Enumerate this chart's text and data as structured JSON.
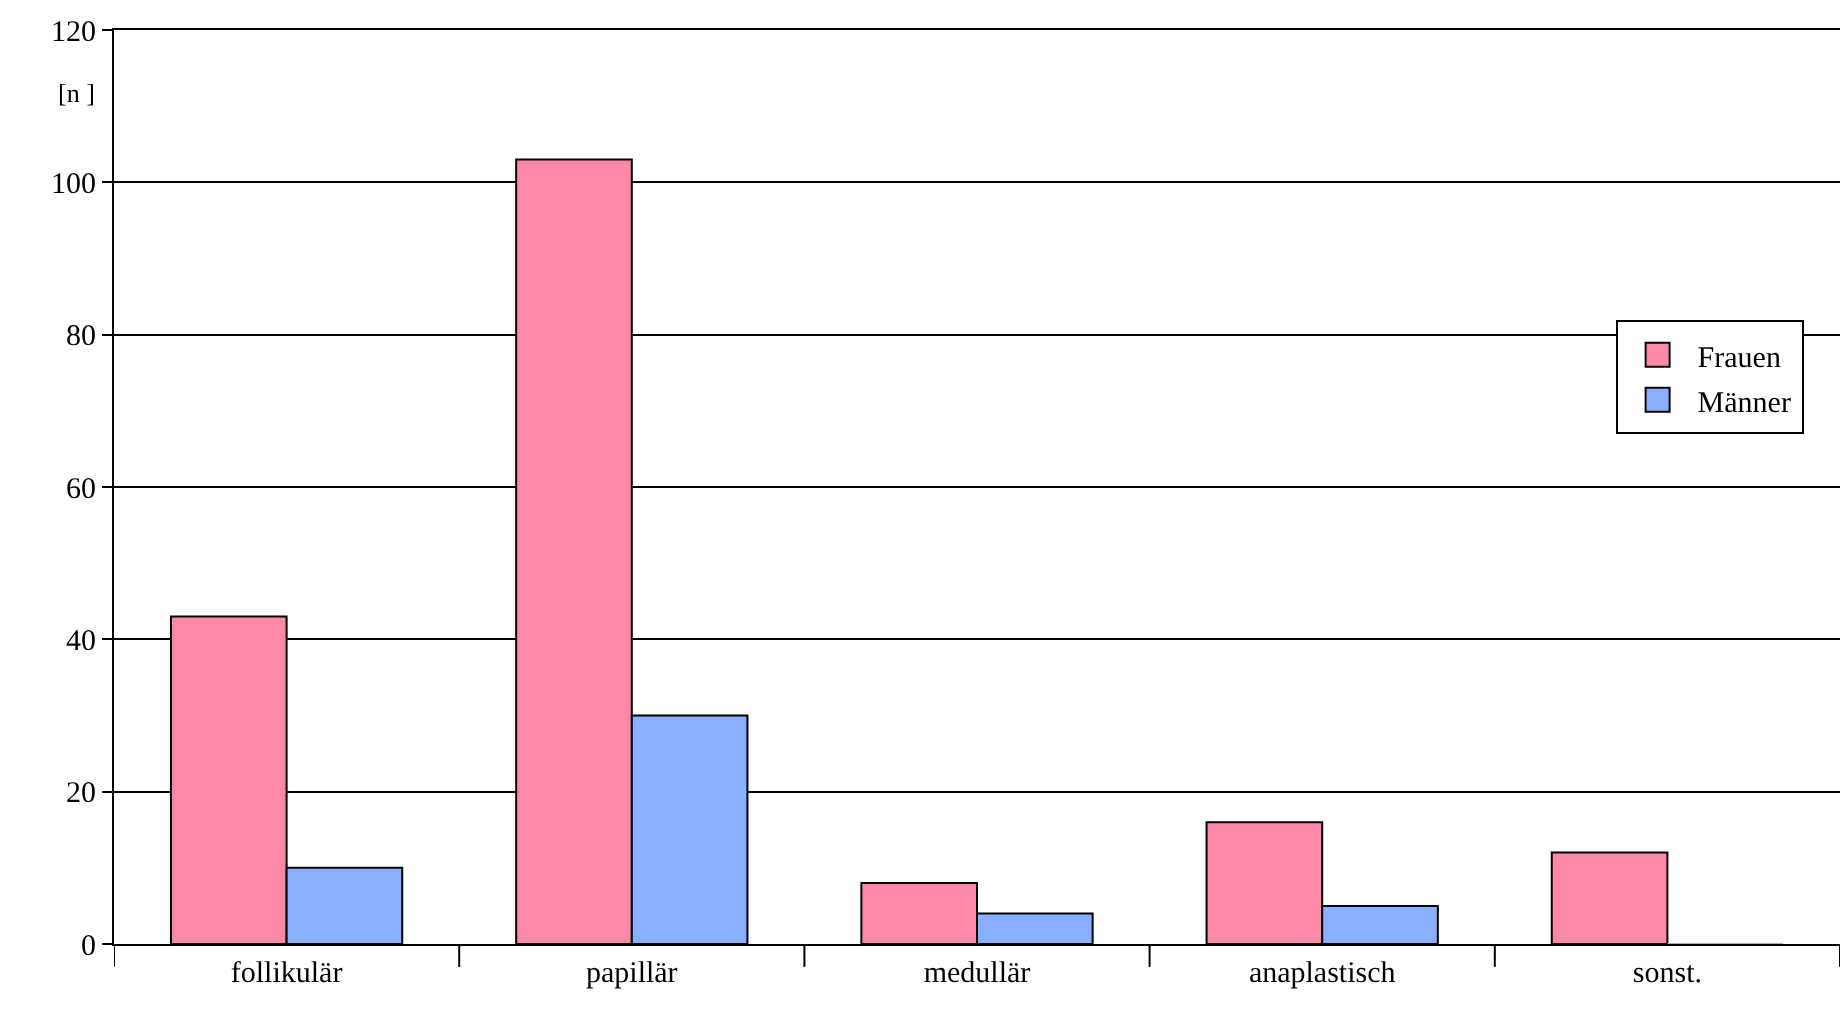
{
  "chart_data": {
    "type": "bar",
    "ylabel": "[n ]",
    "categories": [
      "follikulär",
      "papillär",
      "medullär",
      "anaplastisch",
      "sonst."
    ],
    "series": [
      {
        "name": "Frauen",
        "color": "#ff88a8",
        "values": [
          43,
          103,
          8,
          16,
          12
        ]
      },
      {
        "name": "Männer",
        "color": "#88b0ff",
        "values": [
          10,
          30,
          4,
          5,
          0
        ]
      }
    ],
    "ylim": [
      0,
      120
    ],
    "yticks": [
      0,
      20,
      40,
      60,
      80,
      100,
      120
    ],
    "grid": "y",
    "legend": "right"
  }
}
